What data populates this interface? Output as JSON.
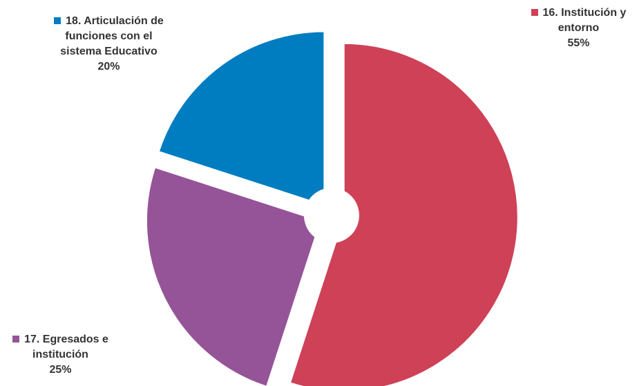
{
  "chart_data": {
    "type": "pie",
    "title": "",
    "slices": [
      {
        "label": "16. Institución y entorno",
        "value": 55,
        "value_label": "55%",
        "color": "#CE4157",
        "label_lines": [
          "16. Institución y",
          "entorno"
        ]
      },
      {
        "label": "17. Egresados e institución",
        "value": 25,
        "value_label": "25%",
        "color": "#955497",
        "label_lines": [
          "17. Egresados e",
          "institución"
        ]
      },
      {
        "label": "18. Articulación de funciones con el sistema Educativo",
        "value": 20,
        "value_label": "20%",
        "color": "#007DC1",
        "label_lines": [
          "18. Articulación de",
          "funciones con el",
          "sistema Educativo"
        ]
      }
    ],
    "exploded": true,
    "donut_hole": true
  }
}
